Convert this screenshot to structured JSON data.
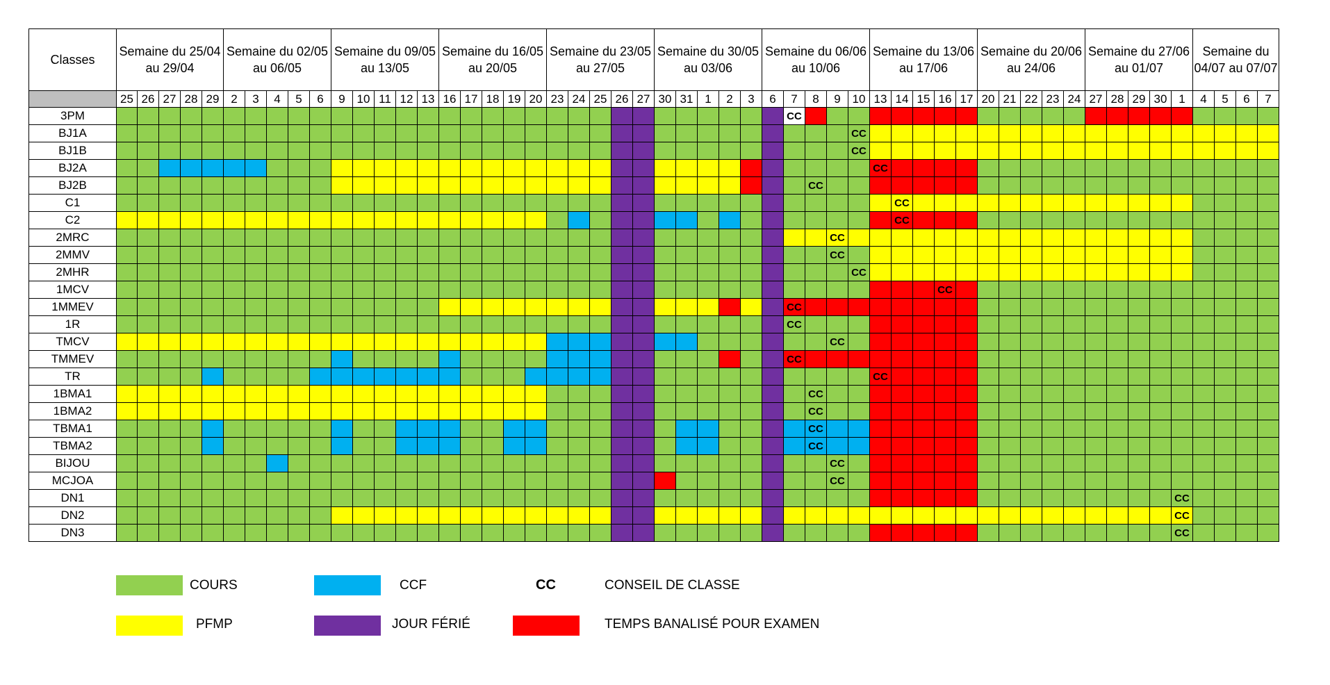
{
  "colors": {
    "G": "#92d050",
    "Y": "#ffff00",
    "B": "#00b0f0",
    "R": "#ff0000",
    "P": "#7030a0"
  },
  "header": {
    "classes_label": "Classes",
    "weeks": [
      {
        "label": "Semaine du 25/04 au 29/04",
        "days": 5
      },
      {
        "label": "Semaine du 02/05 au 06/05",
        "days": 5
      },
      {
        "label": "Semaine du 09/05 au 13/05",
        "days": 5
      },
      {
        "label": "Semaine du 16/05 au 20/05",
        "days": 5
      },
      {
        "label": "Semaine du 23/05 au 27/05",
        "days": 5
      },
      {
        "label": "Semaine du 30/05 au 03/06",
        "days": 5
      },
      {
        "label": "Semaine du 06/06 au 10/06",
        "days": 5
      },
      {
        "label": "Semaine du 13/06 au 17/06",
        "days": 5
      },
      {
        "label": "Semaine du 20/06 au 24/06",
        "days": 5
      },
      {
        "label": "Semaine du 27/06 au 01/07",
        "days": 5
      },
      {
        "label": "Semaine du 04/07 au 07/07",
        "days": 4
      }
    ],
    "days": [
      "25",
      "26",
      "27",
      "28",
      "29",
      "2",
      "3",
      "4",
      "5",
      "6",
      "9",
      "10",
      "11",
      "12",
      "13",
      "16",
      "17",
      "18",
      "19",
      "20",
      "23",
      "24",
      "25",
      "26",
      "27",
      "30",
      "31",
      "1",
      "2",
      "3",
      "6",
      "7",
      "8",
      "9",
      "10",
      "13",
      "14",
      "15",
      "16",
      "17",
      "20",
      "21",
      "22",
      "23",
      "24",
      "27",
      "28",
      "29",
      "30",
      "1",
      "4",
      "5",
      "6",
      "7"
    ]
  },
  "rows": [
    {
      "name": "3PM",
      "cells": "GGGGGGGGGGGGGGGGGGGGGGGPPGGGGGPCRGGRRRRRGGGGGRRRRRGGGG",
      "cc": [
        31
      ]
    },
    {
      "name": "BJ1A",
      "cells": "GGGGGGGGGGGGGGGGGGGGGGGPPGGGGGPGGGGYYYYYYYYYYYYYYYYYYY",
      "cc": [
        34
      ]
    },
    {
      "name": "BJ1B",
      "cells": "GGGGGGGGGGGGGGGGGGGGGGGPPGGGGGPGGGGYYYYYYYYYYYYYYYYYYY",
      "cc": [
        34
      ]
    },
    {
      "name": "BJ2A",
      "cells": "GGBBBBBGGGYYYYYYYYYYYYYPPYYYYRPGGGGRRRRRGGGGGGGGGGGGGG",
      "cc": [
        35
      ]
    },
    {
      "name": "BJ2B",
      "cells": "GGGGGGGGGGYYYYYYYYYYYYYPPYYYYRPGGGGRRRRRGGGGGGGGGGGGGG",
      "cc": [
        32
      ]
    },
    {
      "name": "C1",
      "cells": "GGGGGGGGGGGGGGGGGGGGGGGPPGGGGGPGGGGYYYYYYYYYYYYYYYGGGG",
      "cc": [
        36
      ]
    },
    {
      "name": "C2",
      "cells": "YYYYYYYYYYYYYYYYYYYYGBGPPBBGBGPGGGGRRRRRGGGGGGGGGGGGGG",
      "cc": [
        36
      ]
    },
    {
      "name": "2MRC",
      "cells": "GGGGGGGGGGGGGGGGGGGGGGGPPGGGGGPYYYYYYYYYYYYYYYYYYYGGGG",
      "cc": [
        33
      ]
    },
    {
      "name": "2MMV",
      "cells": "GGGGGGGGGGGGGGGGGGGGGGGPPGGGGGPGGGGYYYYYYYYYYYYYYYGGGG",
      "cc": [
        33
      ]
    },
    {
      "name": "2MHR",
      "cells": "GGGGGGGGGGGGGGGGGGGGGGGPPGGGGGPGGGGYYYYYYYYYYYYYYYGGGG",
      "cc": [
        34
      ]
    },
    {
      "name": "1MCV",
      "cells": "GGGGGGGGGGGGGGGGGGGGGGGPPGGGGGPGGGGRRRRRGGGGGGGGGGGGGG",
      "cc": [
        38
      ]
    },
    {
      "name": "1MMEV",
      "cells": "GGGGGGGGGGGGGGGYYYYYYYYPPYYYRYPRRRRRRRRRGGGGGGGGGGGGGG",
      "cc": [
        31
      ]
    },
    {
      "name": "1R",
      "cells": "GGGGGGGGGGGGGGGGGGGGGGGPPGGGGGPGGGGRRRRRGGGGGGGGGGGGGG",
      "cc": [
        31
      ]
    },
    {
      "name": "TMCV",
      "cells": "YYYYYYYYYYYYYYYYYYYYBBBPPBBGGGPGGGGRRRRRGGGGGGGGGGGGGG",
      "cc": [
        33
      ]
    },
    {
      "name": "TMMEV",
      "cells": "GGGGGGGGGGBGGGGBGGGGBBBPPGGGRGPRRRRRRRRRGGGGGGGGGGGGGG",
      "cc": [
        31
      ]
    },
    {
      "name": "TR",
      "cells": "GGGGBGGGGBBBBBBBGGGBBBBPPGGGGGPGGGGRRRRRGGGGGGGGGGGGGG",
      "cc": [
        35
      ]
    },
    {
      "name": "1BMA1",
      "cells": "YYYYYYYYYYYYYYYYYYYYGGGPPGGGGGPGGGGRRRRRGGGGGGGGGGGGGG",
      "cc": [
        32
      ]
    },
    {
      "name": "1BMA2",
      "cells": "YYYYYYYYYYYYYYYYYYYYGGGPPGGGGGPGGGGRRRRRGGGGGGGGGGGGGG",
      "cc": [
        32
      ]
    },
    {
      "name": "TBMA1",
      "cells": "GGGGBGGGGGBGGBBBGGBBGGGPPGBBGGPBBBBRRRRRGGGGGGGGGGGGGG",
      "cc": [
        32
      ]
    },
    {
      "name": "TBMA2",
      "cells": "GGGGBGGGGGBGGBBBGGBBGGGPPGBBGGPBBBBRRRRRGGGGGGGGGGGGGG",
      "cc": [
        32
      ]
    },
    {
      "name": "BIJOU",
      "cells": "GGGGGGGBGGGGGGGGGGGGGGGPPGGGGGPGGGGRRRRRGGGGGGGGGGGGGG",
      "cc": [
        33
      ]
    },
    {
      "name": "MCJOA",
      "cells": "GGGGGGGGGGGGGGGGGGGGGGGPPRGGGGPGGGGRRRRRGGGGGGGGGGGGGG",
      "cc": [
        33
      ]
    },
    {
      "name": "DN1",
      "cells": "GGGGGGGGGGGGGGGGGGGGGGGPPGGGGGPGGGGRRRRRGGGGGGGGGGGGGG",
      "cc": [
        49
      ]
    },
    {
      "name": "DN2",
      "cells": "GGGGGGGGGGYYYYYYYYYYYYYPPYYYYYPYYYYYYYYYYYYYYYYYYYGGGG",
      "cc": [
        49
      ]
    },
    {
      "name": "DN3",
      "cells": "GGGGGGGGGGGGGGGGGGGGGGGPPGGGGGPGGGGRRRRRGGGGGGGGGGGGGG",
      "cc": [
        49
      ]
    }
  ],
  "cc_text": "CC",
  "legend": {
    "cours": "COURS",
    "ccf": "CCF",
    "cc_symbol": "CC",
    "conseil": "CONSEIL DE CLASSE",
    "pfmp": "PFMP",
    "ferie": "JOUR FÉRIÉ",
    "temps": "TEMPS BANALISÉ POUR EXAMEN"
  }
}
